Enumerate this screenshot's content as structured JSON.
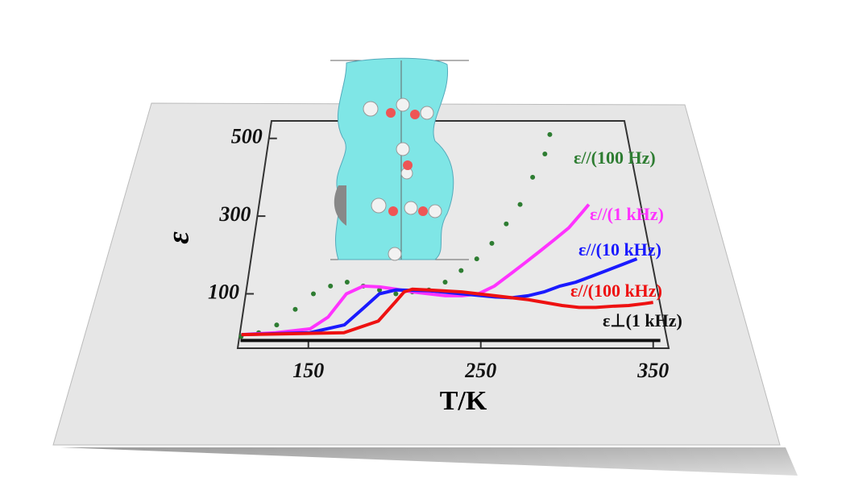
{
  "chart_data": {
    "type": "line",
    "x_label": "T/K",
    "y_label": "ε",
    "xlim": [
      109,
      359
    ],
    "ylim": [
      -40,
      545
    ],
    "xticks": [
      150,
      250,
      350
    ],
    "yticks": [
      100,
      300,
      500
    ],
    "series": [
      {
        "name": "ε//(100 Hz)",
        "color": "#2e7d32",
        "marker": "dots",
        "x": [
          110,
          120,
          130,
          140,
          150,
          160,
          170,
          180,
          190,
          200,
          210,
          220,
          230,
          240,
          250,
          260,
          270,
          280,
          290,
          300,
          305
        ],
        "values": [
          -10,
          0,
          20,
          60,
          100,
          120,
          130,
          120,
          110,
          100,
          105,
          110,
          130,
          160,
          190,
          230,
          280,
          330,
          400,
          460,
          510
        ]
      },
      {
        "name": "ε//(1 kHz)",
        "color": "#ff33ff",
        "x": [
          110,
          130,
          150,
          160,
          170,
          180,
          190,
          200,
          210,
          220,
          230,
          240,
          250,
          260,
          270,
          280,
          290,
          300,
          310,
          320,
          325
        ],
        "values": [
          -5,
          0,
          10,
          40,
          100,
          120,
          118,
          112,
          105,
          100,
          95,
          95,
          100,
          120,
          150,
          180,
          210,
          240,
          270,
          310,
          330
        ]
      },
      {
        "name": "ε//(10 kHz)",
        "color": "#1a1aff",
        "x": [
          110,
          150,
          170,
          180,
          190,
          200,
          220,
          240,
          260,
          270,
          280,
          290,
          300,
          310,
          320,
          330,
          340,
          350
        ],
        "values": [
          -5,
          0,
          20,
          60,
          100,
          110,
          108,
          100,
          92,
          90,
          95,
          105,
          120,
          130,
          145,
          160,
          175,
          190
        ]
      },
      {
        "name": "ε//(100 kHz)",
        "color": "#ee1111",
        "x": [
          110,
          170,
          190,
          200,
          205,
          210,
          220,
          240,
          260,
          280,
          300,
          310,
          320,
          330,
          340,
          350,
          355
        ],
        "values": [
          -5,
          0,
          30,
          80,
          105,
          112,
          110,
          105,
          95,
          85,
          70,
          65,
          65,
          68,
          70,
          75,
          78
        ]
      },
      {
        "name": "ε⊥(1 kHz)",
        "color": "#111111",
        "x": [
          110,
          150,
          200,
          250,
          300,
          355
        ],
        "values": [
          -20,
          -20,
          -20,
          -20,
          -20,
          -20
        ]
      }
    ]
  }
}
